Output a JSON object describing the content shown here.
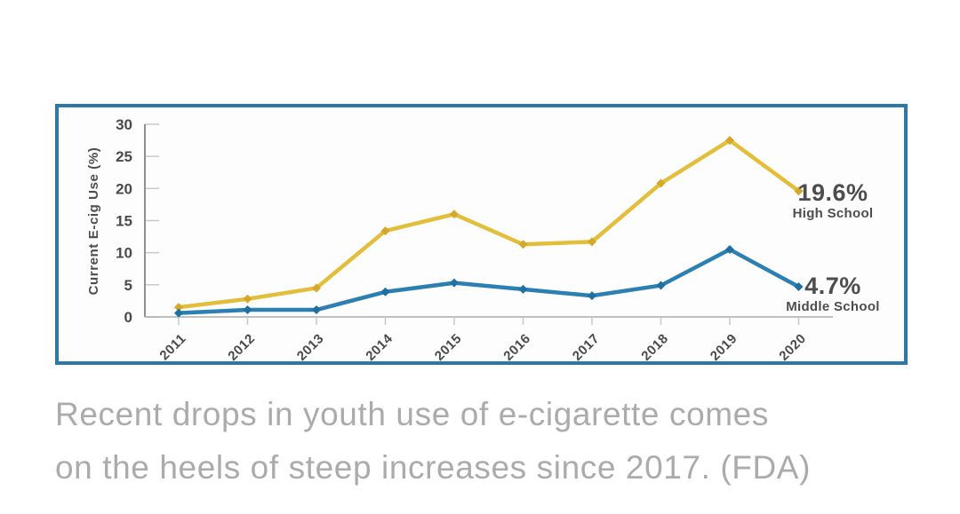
{
  "chart_data": {
    "type": "line",
    "title": "",
    "xlabel": "",
    "ylabel": "Current E-cig Use (%)",
    "categories": [
      "2011",
      "2012",
      "2013",
      "2014",
      "2015",
      "2016",
      "2017",
      "2018",
      "2019",
      "2020"
    ],
    "series": [
      {
        "name": "High School",
        "color": "#E3BE3A",
        "marker_color": "#D5A72B",
        "values": [
          1.5,
          2.8,
          4.5,
          13.4,
          16.0,
          11.3,
          11.7,
          20.8,
          27.5,
          19.6
        ]
      },
      {
        "name": "Middle School",
        "color": "#2C7FB2",
        "marker_color": "#1F6F9F",
        "values": [
          0.6,
          1.1,
          1.1,
          3.9,
          5.3,
          4.3,
          3.3,
          4.9,
          10.5,
          4.7
        ]
      }
    ],
    "ylim": [
      0,
      30
    ],
    "y_ticks": [
      0,
      5,
      10,
      15,
      20,
      25,
      30
    ],
    "grid": false,
    "legend_position": "end-of-line-labels",
    "end_labels": [
      {
        "value": "19.6%",
        "label": "High School"
      },
      {
        "value": "4.7%",
        "label": "Middle School"
      }
    ],
    "frame_border_color": "#2E78A9"
  },
  "caption": {
    "lines": [
      "Recent drops in youth use of e-cigarette comes",
      "on the heels of steep increases since 2017. (FDA)"
    ],
    "color": "#ABABAB"
  }
}
